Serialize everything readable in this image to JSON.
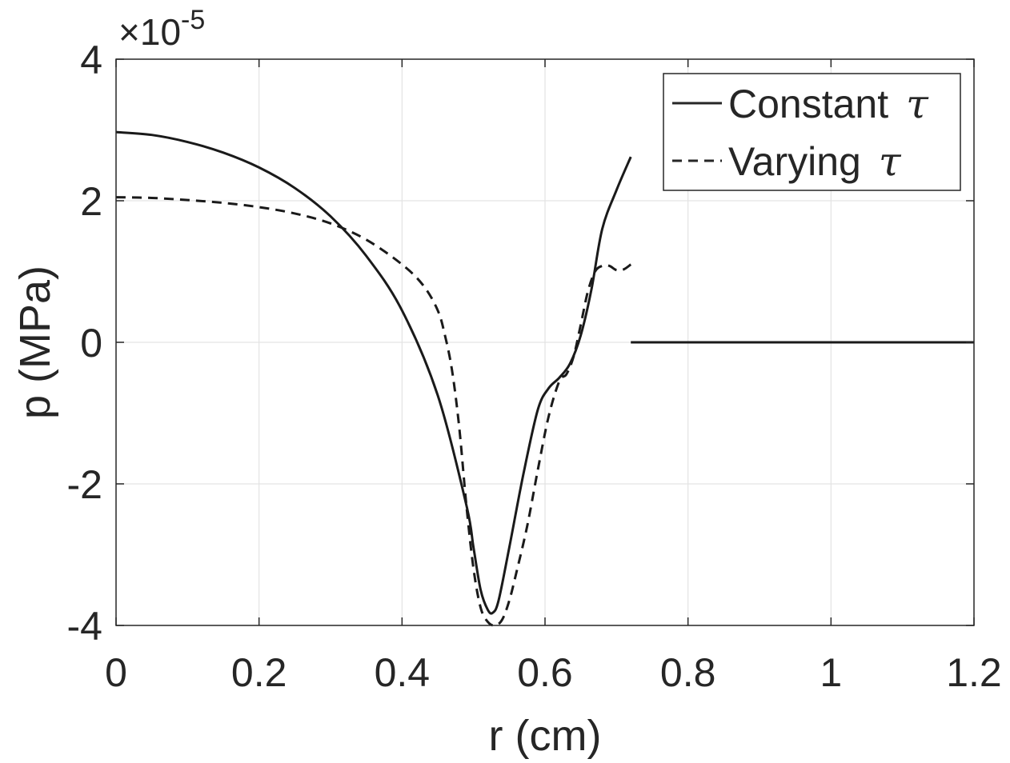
{
  "chart_data": {
    "type": "line",
    "xlabel": "r (cm)",
    "ylabel": "p (MPa)",
    "y_multiplier": "×10",
    "y_multiplier_exponent": "-5",
    "xlim": [
      0,
      1.2
    ],
    "ylim": [
      -4,
      4
    ],
    "grid": true,
    "legend_position": "top-right",
    "x_ticks": [
      0,
      0.2,
      0.4,
      0.6,
      0.8,
      1,
      1.2
    ],
    "x_tick_labels": [
      "0",
      "0.2",
      "0.4",
      "0.6",
      "0.8",
      "1",
      "1.2"
    ],
    "y_ticks": [
      -4,
      -2,
      0,
      2,
      4
    ],
    "y_tick_labels": [
      "-4",
      "-2",
      "0",
      "2",
      "4"
    ],
    "series": [
      {
        "name": "Constant",
        "symbol": "τ",
        "style": "solid",
        "x": [
          0,
          0.05,
          0.1,
          0.15,
          0.2,
          0.25,
          0.3,
          0.35,
          0.4,
          0.45,
          0.49,
          0.5,
          0.51,
          0.52,
          0.527,
          0.535,
          0.55,
          0.57,
          0.59,
          0.605,
          0.62,
          0.635,
          0.65,
          0.665,
          0.68,
          0.7,
          0.72
        ],
        "values": [
          2.97,
          2.93,
          2.83,
          2.68,
          2.47,
          2.18,
          1.78,
          1.22,
          0.45,
          -0.75,
          -2.3,
          -2.9,
          -3.5,
          -3.78,
          -3.82,
          -3.65,
          -2.9,
          -1.85,
          -0.95,
          -0.65,
          -0.5,
          -0.3,
          0.1,
          0.75,
          1.6,
          2.15,
          2.62
        ]
      },
      {
        "name": "Varying",
        "symbol": "τ",
        "style": "dashed",
        "x": [
          0,
          0.05,
          0.1,
          0.15,
          0.2,
          0.25,
          0.3,
          0.35,
          0.4,
          0.43,
          0.45,
          0.46,
          0.47,
          0.48,
          0.49,
          0.5,
          0.51,
          0.52,
          0.53,
          0.54,
          0.55,
          0.56,
          0.575,
          0.59,
          0.605,
          0.62,
          0.63,
          0.64,
          0.65,
          0.66,
          0.67,
          0.68,
          0.69,
          0.7,
          0.71,
          0.72
        ],
        "values": [
          2.05,
          2.04,
          2.01,
          1.97,
          1.91,
          1.82,
          1.68,
          1.45,
          1.1,
          0.8,
          0.45,
          0.1,
          -0.4,
          -1.2,
          -2.3,
          -3.2,
          -3.75,
          -3.95,
          -4.0,
          -3.92,
          -3.65,
          -3.25,
          -2.6,
          -1.8,
          -1.05,
          -0.55,
          -0.45,
          -0.2,
          0.25,
          0.72,
          1.0,
          1.08,
          1.08,
          1.02,
          1.03,
          1.1
        ]
      },
      {
        "name": "",
        "symbol": "",
        "style": "solid",
        "x": [
          0.72,
          1.2
        ],
        "values": [
          0,
          0
        ]
      }
    ]
  }
}
